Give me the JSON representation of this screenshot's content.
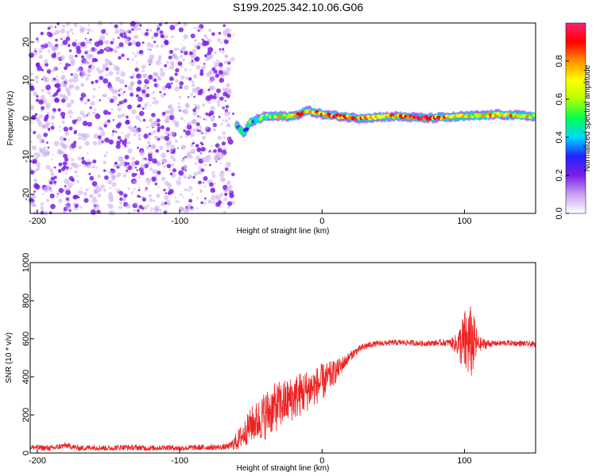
{
  "title": "S199.2025.342.10.06.G06",
  "colors": {
    "snr_line": "#ee2222",
    "scatter_main": "#7a1ee8",
    "scatter_light": "#c9a6ee",
    "axis": "#000000"
  },
  "chart_data": [
    {
      "type": "heatmap",
      "name": "spectrogram",
      "xlabel": "Height of straight line (km)",
      "ylabel": "Frequency (Hz)",
      "xlim": [
        -205,
        150
      ],
      "ylim": [
        -25,
        25
      ],
      "xticks": [
        -200,
        -100,
        0,
        100
      ],
      "yticks": [
        -20,
        -10,
        0,
        10,
        20
      ],
      "colorbar": {
        "label": "Normalized spectral amplitude",
        "range": [
          0,
          1
        ],
        "ticks": [
          0.0,
          0.2,
          0.4,
          0.6,
          0.8
        ],
        "tick_labels": [
          "0.0",
          "0.2",
          "0.4",
          "0.6",
          "0.8"
        ],
        "colormap": [
          "#ffffff",
          "#c8a0f0",
          "#7a1ee8",
          "#2222ff",
          "#00d8ff",
          "#00ff50",
          "#b4ff00",
          "#ffff00",
          "#ff9000",
          "#ff0000",
          "#ff2070"
        ]
      },
      "noise_region": {
        "x": [
          -205,
          -62
        ],
        "freq_range": [
          -25,
          25
        ],
        "amplitude": 0.1
      },
      "ridge": [
        {
          "x": -60,
          "freq": -2,
          "amplitude": 0.3
        },
        {
          "x": -55,
          "freq": -4,
          "amplitude": 0.35
        },
        {
          "x": -50,
          "freq": -1,
          "amplitude": 0.4
        },
        {
          "x": -40,
          "freq": 0.5,
          "amplitude": 0.5
        },
        {
          "x": -20,
          "freq": 0.5,
          "amplitude": 0.7
        },
        {
          "x": -10,
          "freq": 2,
          "amplitude": 0.6
        },
        {
          "x": 0,
          "freq": 1,
          "amplitude": 0.75
        },
        {
          "x": 25,
          "freq": 0,
          "amplitude": 0.8
        },
        {
          "x": 50,
          "freq": 0.5,
          "amplitude": 0.7
        },
        {
          "x": 75,
          "freq": 0,
          "amplitude": 0.8
        },
        {
          "x": 100,
          "freq": 0.5,
          "amplitude": 0.6
        },
        {
          "x": 125,
          "freq": 1,
          "amplitude": 0.65
        },
        {
          "x": 150,
          "freq": 0.5,
          "amplitude": 0.6
        }
      ]
    },
    {
      "type": "line",
      "name": "snr",
      "xlabel": "Height of straight line (km)",
      "ylabel": "SNR (10 * v/v)",
      "xlim": [
        -205,
        150
      ],
      "ylim": [
        0,
        1000
      ],
      "xticks": [
        -200,
        -100,
        0,
        100
      ],
      "yticks": [
        0,
        200,
        400,
        600,
        800,
        1000
      ],
      "series": [
        {
          "name": "SNR",
          "x": [
            -205,
            -190,
            -180,
            -170,
            -160,
            -150,
            -140,
            -130,
            -120,
            -110,
            -100,
            -90,
            -80,
            -70,
            -65,
            -60,
            -55,
            -50,
            -45,
            -40,
            -35,
            -30,
            -25,
            -20,
            -15,
            -10,
            -5,
            0,
            5,
            10,
            15,
            20,
            25,
            30,
            35,
            40,
            50,
            60,
            70,
            80,
            90,
            95,
            100,
            105,
            110,
            120,
            130,
            140,
            150
          ],
          "y": [
            30,
            25,
            40,
            25,
            30,
            25,
            30,
            28,
            25,
            30,
            25,
            28,
            30,
            30,
            35,
            60,
            100,
            150,
            170,
            200,
            230,
            250,
            270,
            290,
            310,
            330,
            350,
            370,
            400,
            430,
            470,
            510,
            540,
            560,
            570,
            575,
            580,
            580,
            575,
            578,
            580,
            570,
            575,
            580,
            570,
            575,
            578,
            575,
            570
          ],
          "noise": [
            15,
            15,
            15,
            15,
            15,
            15,
            15,
            15,
            15,
            15,
            15,
            15,
            15,
            15,
            18,
            50,
            70,
            90,
            110,
            130,
            130,
            130,
            120,
            120,
            120,
            110,
            100,
            100,
            80,
            60,
            40,
            25,
            20,
            20,
            15,
            15,
            15,
            15,
            15,
            15,
            20,
            60,
            180,
            200,
            40,
            15,
            15,
            15,
            15
          ]
        }
      ]
    }
  ]
}
